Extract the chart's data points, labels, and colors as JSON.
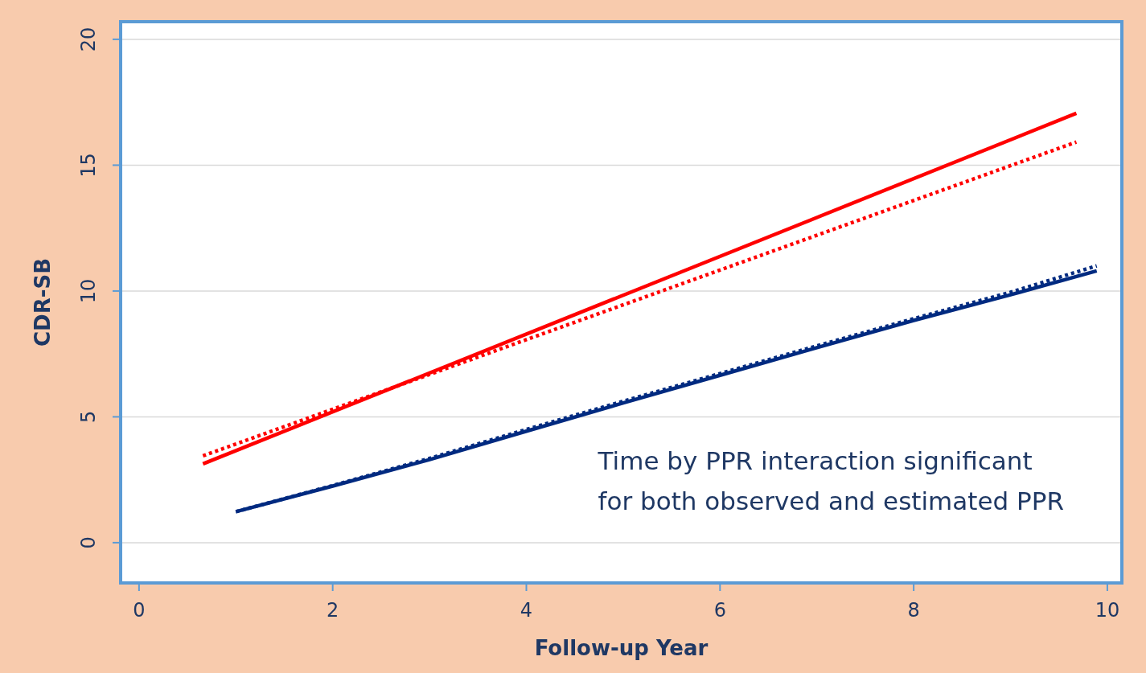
{
  "chart_data": {
    "type": "line",
    "xlabel": "Follow-up Year",
    "ylabel": "CDR-SB",
    "xlim": [
      -0.19,
      10.15
    ],
    "ylim": [
      -1.6,
      20.7
    ],
    "xticks": [
      0,
      2,
      4,
      6,
      8,
      10
    ],
    "yticks": [
      0,
      5,
      10,
      15,
      20
    ],
    "grid": "y",
    "marker": "none",
    "annotations": [
      "Time by PPR interaction significant\nfor both observed and estimated PPR"
    ],
    "series": [
      {
        "color": "#ff0000",
        "line_style": "solid",
        "x": [
          0.66,
          9.68
        ],
        "values": [
          3.13,
          17.06
        ]
      },
      {
        "color": "#ff0000",
        "line_style": "dotted",
        "x": [
          0.66,
          9.68
        ],
        "values": [
          3.45,
          15.92
        ]
      },
      {
        "color": "#002a80",
        "line_style": "solid",
        "x": [
          1,
          2,
          3,
          4,
          5,
          6,
          7,
          8,
          9,
          9.89
        ],
        "values": [
          1.23,
          2.25,
          3.3,
          4.43,
          5.55,
          6.65,
          7.75,
          8.83,
          9.85,
          10.8
        ]
      },
      {
        "color": "#002a80",
        "line_style": "dotted",
        "x": [
          1,
          2,
          3,
          4,
          5,
          6,
          7,
          8,
          9,
          9.89
        ],
        "values": [
          1.23,
          2.27,
          3.35,
          4.5,
          5.62,
          6.72,
          7.82,
          8.9,
          9.95,
          11.0
        ]
      }
    ]
  }
}
